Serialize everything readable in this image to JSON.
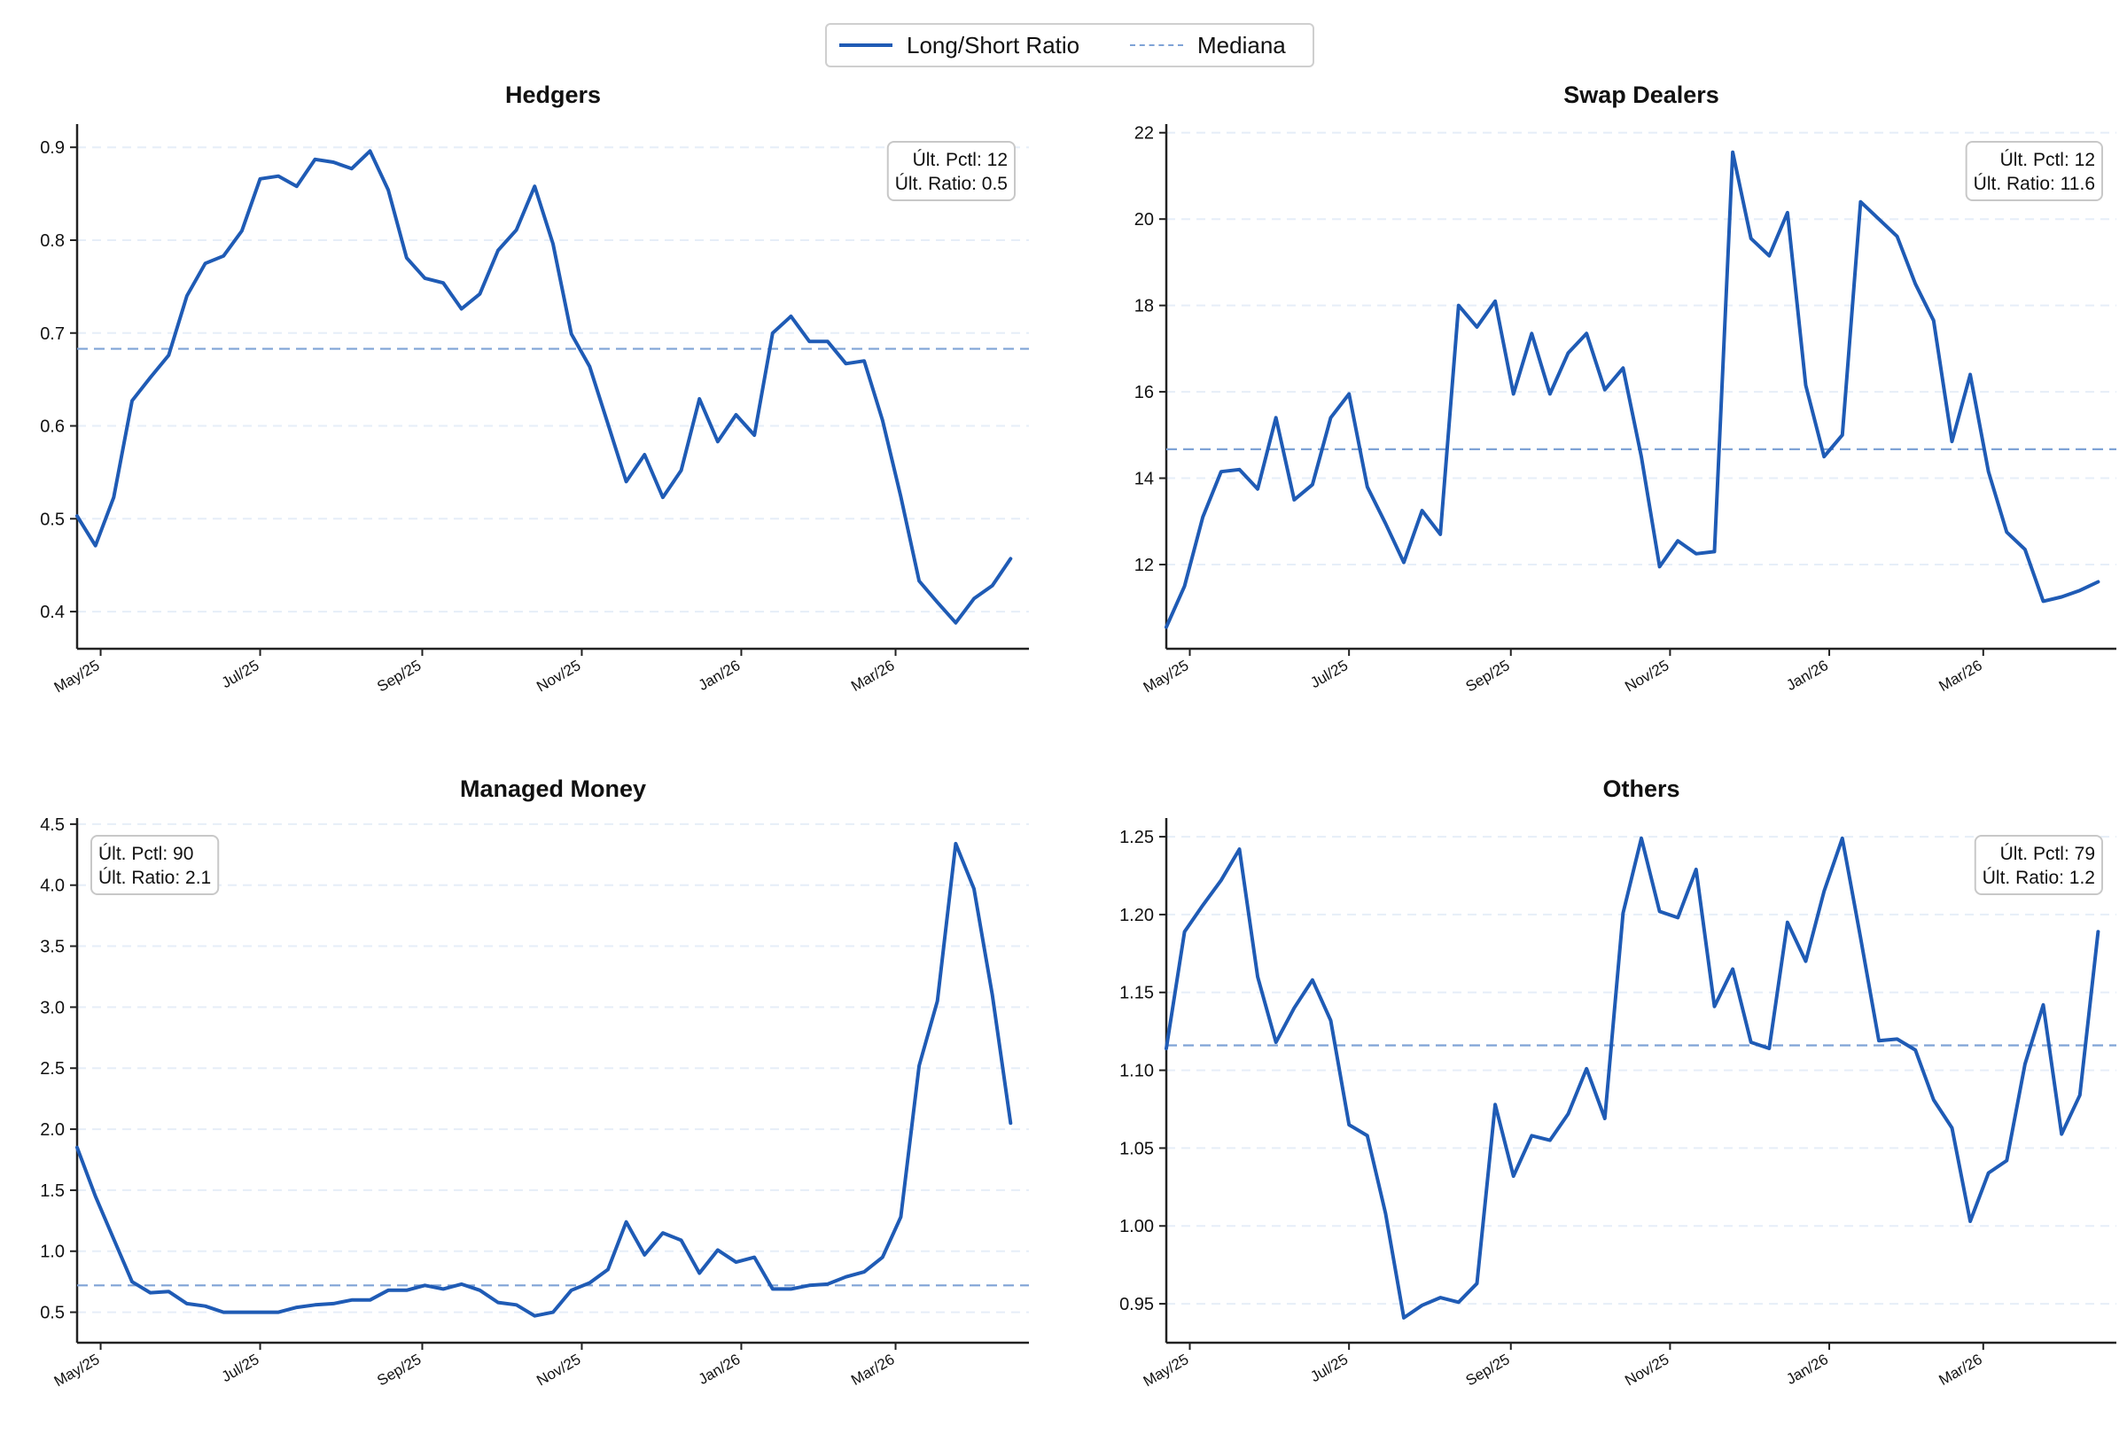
{
  "legend": {
    "ratio_label": "Long/Short Ratio",
    "median_label": "Mediana"
  },
  "colors": {
    "line": "#1f5bb5",
    "median": "#7fa3d6",
    "grid": "#e6eef8",
    "text": "#111111"
  },
  "x_ticks": [
    "May/25",
    "Jul/25",
    "Sep/25",
    "Nov/25",
    "Jan/26",
    "Mar/26"
  ],
  "x_tick_dates": [
    "2025-05-01",
    "2025-07-01",
    "2025-09-01",
    "2025-11-01",
    "2026-01-01",
    "2026-03-01"
  ],
  "chart_data": [
    {
      "type": "line",
      "title": "Hedgers",
      "xlabel": "",
      "ylabel": "",
      "x_range": [
        "2025-04-22",
        "2026-04-21"
      ],
      "ylim": [
        0.36,
        0.925
      ],
      "yticks": [
        0.4,
        0.5,
        0.6,
        0.7,
        0.8,
        0.9
      ],
      "ytick_labels": [
        "0.4",
        "0.5",
        "0.6",
        "0.7",
        "0.8",
        "0.9"
      ],
      "median": 0.683,
      "annotation_pos": "top-right",
      "annotation": [
        "Últ. Pctl: 12",
        "Últ. Ratio: 0.5"
      ],
      "start_date": "2025-04-22",
      "step_days": 7,
      "values": [
        0.503,
        0.471,
        0.523,
        0.627,
        0.652,
        0.676,
        0.74,
        0.775,
        0.783,
        0.81,
        0.866,
        0.869,
        0.858,
        0.887,
        0.884,
        0.877,
        0.896,
        0.854,
        0.781,
        0.759,
        0.754,
        0.726,
        0.742,
        0.789,
        0.811,
        0.858,
        0.796,
        0.699,
        0.664,
        0.602,
        0.54,
        0.569,
        0.523,
        0.552,
        0.629,
        0.583,
        0.612,
        0.59,
        0.7,
        0.718,
        0.691,
        0.691,
        0.667,
        0.67,
        0.606,
        0.524,
        0.433,
        0.41,
        0.388,
        0.414,
        0.428,
        0.457
      ]
    },
    {
      "type": "line",
      "title": "Swap Dealers",
      "xlabel": "",
      "ylabel": "",
      "x_range": [
        "2025-04-22",
        "2026-04-21"
      ],
      "ylim": [
        10.05,
        22.2
      ],
      "yticks": [
        12,
        14,
        16,
        18,
        20,
        22
      ],
      "ytick_labels": [
        "12",
        "14",
        "16",
        "18",
        "20",
        "22"
      ],
      "median": 14.67,
      "annotation_pos": "top-right",
      "annotation": [
        "Últ. Pctl: 12",
        "Últ. Ratio: 11.6"
      ],
      "start_date": "2025-04-22",
      "step_days": 7,
      "values": [
        10.55,
        11.5,
        13.1,
        14.15,
        14.2,
        13.75,
        15.4,
        13.5,
        13.85,
        15.4,
        15.95,
        13.8,
        12.95,
        12.05,
        13.25,
        12.7,
        18.0,
        17.5,
        18.1,
        15.95,
        17.35,
        15.95,
        16.9,
        17.35,
        16.05,
        16.55,
        14.5,
        11.95,
        12.55,
        12.25,
        12.3,
        21.55,
        19.55,
        19.15,
        20.15,
        16.15,
        14.5,
        15.0,
        20.4,
        20.0,
        19.6,
        18.5,
        17.65,
        14.85,
        16.4,
        14.15,
        12.75,
        12.35,
        11.15,
        11.25,
        11.4,
        11.6
      ]
    },
    {
      "type": "line",
      "title": "Managed Money",
      "xlabel": "",
      "ylabel": "",
      "x_range": [
        "2025-04-22",
        "2026-04-21"
      ],
      "ylim": [
        0.25,
        4.55
      ],
      "yticks": [
        0.5,
        1.0,
        1.5,
        2.0,
        2.5,
        3.0,
        3.5,
        4.0,
        4.5
      ],
      "ytick_labels": [
        "0.5",
        "1.0",
        "1.5",
        "2.0",
        "2.5",
        "3.0",
        "3.5",
        "4.0",
        "4.5"
      ],
      "median": 0.72,
      "annotation_pos": "top-left",
      "annotation": [
        "Últ. Pctl: 90",
        "Últ. Ratio: 2.1"
      ],
      "start_date": "2025-04-22",
      "step_days": 7,
      "values": [
        1.85,
        1.45,
        1.1,
        0.75,
        0.66,
        0.67,
        0.57,
        0.55,
        0.5,
        0.5,
        0.5,
        0.5,
        0.54,
        0.56,
        0.57,
        0.6,
        0.6,
        0.68,
        0.68,
        0.72,
        0.69,
        0.73,
        0.68,
        0.58,
        0.56,
        0.47,
        0.5,
        0.68,
        0.74,
        0.85,
        1.24,
        0.97,
        1.15,
        1.09,
        0.82,
        1.01,
        0.91,
        0.95,
        0.69,
        0.69,
        0.72,
        0.73,
        0.79,
        0.83,
        0.95,
        1.28,
        2.52,
        3.05,
        4.34,
        3.97,
        3.1,
        2.05
      ]
    },
    {
      "type": "line",
      "title": "Others",
      "xlabel": "",
      "ylabel": "",
      "x_range": [
        "2025-04-22",
        "2026-04-21"
      ],
      "ylim": [
        0.925,
        1.262
      ],
      "yticks": [
        0.95,
        1.0,
        1.05,
        1.1,
        1.15,
        1.2,
        1.25
      ],
      "ytick_labels": [
        "0.95",
        "1.00",
        "1.05",
        "1.10",
        "1.15",
        "1.20",
        "1.25"
      ],
      "median": 1.116,
      "annotation_pos": "top-right",
      "annotation": [
        "Últ. Pctl: 79",
        "Últ. Ratio: 1.2"
      ],
      "start_date": "2025-04-22",
      "step_days": 7,
      "values": [
        1.114,
        1.189,
        1.206,
        1.222,
        1.242,
        1.16,
        1.118,
        1.14,
        1.158,
        1.132,
        1.065,
        1.058,
        1.008,
        0.941,
        0.949,
        0.954,
        0.951,
        0.963,
        1.078,
        1.032,
        1.058,
        1.055,
        1.072,
        1.101,
        1.069,
        1.201,
        1.249,
        1.202,
        1.198,
        1.229,
        1.141,
        1.165,
        1.118,
        1.114,
        1.195,
        1.17,
        1.215,
        1.249,
        1.185,
        1.119,
        1.12,
        1.113,
        1.081,
        1.063,
        1.003,
        1.034,
        1.042,
        1.104,
        1.142,
        1.059,
        1.084,
        1.189
      ]
    }
  ]
}
